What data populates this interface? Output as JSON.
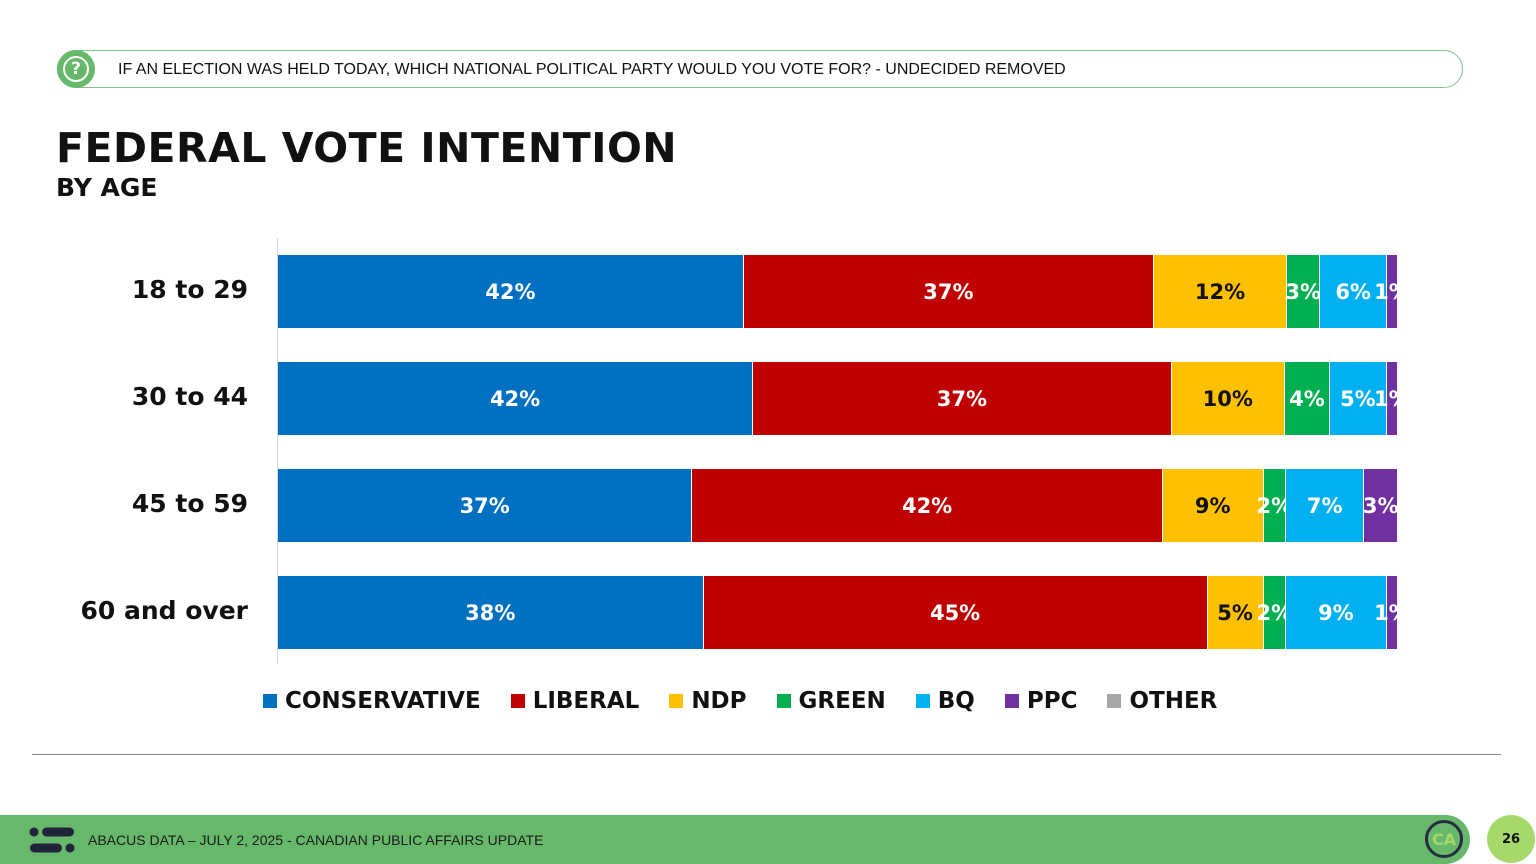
{
  "header": {
    "question": "IF AN ELECTION WAS HELD TODAY, WHICH NATIONAL POLITICAL PARTY WOULD YOU VOTE FOR? - UNDECIDED REMOVED",
    "icon": "question-icon"
  },
  "chart_data": {
    "type": "bar",
    "orientation": "horizontal-stacked",
    "title": "FEDERAL VOTE INTENTION",
    "subtitle": "BY AGE",
    "categories": [
      "18 to 29",
      "30 to 44",
      "45 to 59",
      "60 and over"
    ],
    "series": [
      {
        "name": "CONSERVATIVE",
        "color": "#0070c0",
        "values": [
          42,
          42,
          37,
          38
        ],
        "label_color": "#ffffff"
      },
      {
        "name": "LIBERAL",
        "color": "#c00000",
        "values": [
          37,
          37,
          42,
          45
        ],
        "label_color": "#ffffff"
      },
      {
        "name": "NDP",
        "color": "#ffc000",
        "values": [
          12,
          10,
          9,
          5
        ],
        "label_color": "#111111"
      },
      {
        "name": "GREEN",
        "color": "#00b050",
        "values": [
          3,
          4,
          2,
          2
        ],
        "label_color": "#ffffff"
      },
      {
        "name": "BQ",
        "color": "#00b0f0",
        "values": [
          6,
          5,
          7,
          9
        ],
        "label_color": "#ffffff"
      },
      {
        "name": "PPC",
        "color": "#7030a0",
        "values": [
          1,
          1,
          3,
          1
        ],
        "label_color": "#ffffff"
      },
      {
        "name": "OTHER",
        "color": "#a6a6a6",
        "values": [
          0,
          0,
          0,
          0
        ],
        "label_color": "#ffffff"
      }
    ],
    "value_suffix": "%",
    "legend": "bottom",
    "grid": false
  },
  "footer": {
    "text": "ABACUS DATA – JULY 2, 2025 - CANADIAN PUBLIC AFFAIRS UPDATE",
    "badge": "CA",
    "page": "26"
  }
}
